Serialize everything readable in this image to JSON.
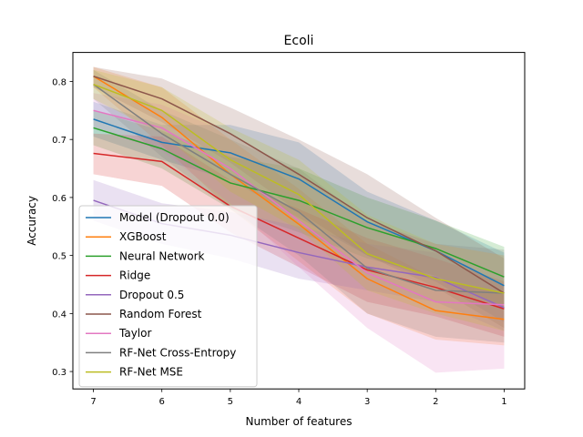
{
  "chart_data": {
    "type": "line",
    "title": "Ecoli",
    "xlabel": "Number of features",
    "ylabel": "Accuracy",
    "x": [
      7,
      6,
      5,
      4,
      3,
      2,
      1
    ],
    "x_ticks": [
      "7",
      "6",
      "5",
      "4",
      "3",
      "2",
      "1"
    ],
    "x_inverted": true,
    "ylim": [
      0.27,
      0.85
    ],
    "y_ticks": [
      0.3,
      0.4,
      0.5,
      0.6,
      0.7,
      0.8
    ],
    "y_tick_labels": [
      "0.3",
      "0.4",
      "0.5",
      "0.6",
      "0.7",
      "0.8"
    ],
    "grid": false,
    "legend_position": "lower-left",
    "shaded_band": "variability band around each series",
    "series": [
      {
        "name": "Model (Dropout 0.0)",
        "color": "#1f77b4",
        "values": [
          0.735,
          0.695,
          0.677,
          0.632,
          0.558,
          0.508,
          0.448
        ],
        "lower": [
          0.705,
          0.665,
          0.63,
          0.565,
          0.5,
          0.455,
          0.385
        ],
        "upper": [
          0.765,
          0.725,
          0.725,
          0.695,
          0.61,
          0.56,
          0.505
        ]
      },
      {
        "name": "XGBoost",
        "color": "#ff7f0e",
        "values": [
          0.809,
          0.738,
          0.64,
          0.554,
          0.46,
          0.405,
          0.39
        ],
        "lower": [
          0.79,
          0.69,
          0.58,
          0.49,
          0.4,
          0.355,
          0.345
        ],
        "upper": [
          0.825,
          0.79,
          0.7,
          0.615,
          0.52,
          0.46,
          0.435
        ]
      },
      {
        "name": "Neural Network",
        "color": "#2ca02c",
        "values": [
          0.72,
          0.684,
          0.625,
          0.595,
          0.548,
          0.512,
          0.463
        ],
        "lower": [
          0.69,
          0.65,
          0.58,
          0.54,
          0.495,
          0.465,
          0.41
        ],
        "upper": [
          0.75,
          0.715,
          0.67,
          0.65,
          0.6,
          0.56,
          0.515
        ]
      },
      {
        "name": "Ridge",
        "color": "#d62728",
        "values": [
          0.676,
          0.662,
          0.585,
          0.53,
          0.475,
          0.445,
          0.408
        ],
        "lower": [
          0.64,
          0.62,
          0.54,
          0.48,
          0.42,
          0.395,
          0.36
        ],
        "upper": [
          0.71,
          0.705,
          0.63,
          0.58,
          0.53,
          0.495,
          0.455
        ]
      },
      {
        "name": "Dropout 0.5",
        "color": "#9467bd",
        "values": [
          0.595,
          0.555,
          0.535,
          0.505,
          0.48,
          0.462,
          0.41
        ],
        "lower": [
          0.56,
          0.52,
          0.495,
          0.46,
          0.44,
          0.42,
          0.37
        ],
        "upper": [
          0.63,
          0.59,
          0.575,
          0.55,
          0.52,
          0.505,
          0.45
        ]
      },
      {
        "name": "Random Forest",
        "color": "#8c564b",
        "values": [
          0.809,
          0.77,
          0.71,
          0.64,
          0.565,
          0.508,
          0.435
        ],
        "lower": [
          0.79,
          0.73,
          0.66,
          0.575,
          0.5,
          0.445,
          0.375
        ],
        "upper": [
          0.825,
          0.805,
          0.755,
          0.7,
          0.64,
          0.565,
          0.495
        ]
      },
      {
        "name": "Taylor",
        "color": "#e377c2",
        "values": [
          0.75,
          0.72,
          0.65,
          0.56,
          0.47,
          0.42,
          0.415
        ],
        "lower": [
          0.72,
          0.68,
          0.59,
          0.48,
          0.375,
          0.298,
          0.305
        ],
        "upper": [
          0.78,
          0.76,
          0.71,
          0.64,
          0.56,
          0.52,
          0.5
        ]
      },
      {
        "name": "RF-Net Cross-Entropy",
        "color": "#7f7f7f",
        "values": [
          0.795,
          0.71,
          0.64,
          0.575,
          0.478,
          0.44,
          0.435
        ],
        "lower": [
          0.77,
          0.67,
          0.58,
          0.5,
          0.4,
          0.36,
          0.35
        ],
        "upper": [
          0.82,
          0.75,
          0.7,
          0.65,
          0.56,
          0.52,
          0.51
        ]
      },
      {
        "name": "RF-Net MSE",
        "color": "#bcbd22",
        "values": [
          0.795,
          0.75,
          0.665,
          0.605,
          0.503,
          0.46,
          0.435
        ],
        "lower": [
          0.77,
          0.71,
          0.61,
          0.545,
          0.44,
          0.4,
          0.37
        ],
        "upper": [
          0.82,
          0.79,
          0.72,
          0.665,
          0.57,
          0.52,
          0.5
        ]
      }
    ]
  }
}
